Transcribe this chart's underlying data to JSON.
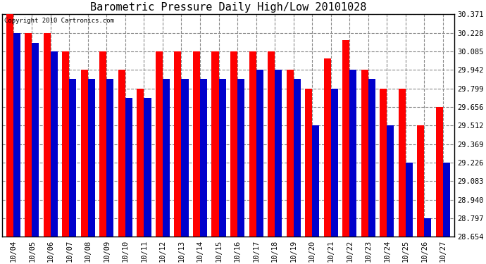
{
  "title": "Barometric Pressure Daily High/Low 20101028",
  "copyright": "Copyright 2010 Cartronics.com",
  "background_color": "#ffffff",
  "plot_bg_color": "#ffffff",
  "bar_width": 0.38,
  "dates": [
    "10/04",
    "10/05",
    "10/06",
    "10/07",
    "10/08",
    "10/09",
    "10/10",
    "10/11",
    "10/12",
    "10/13",
    "10/14",
    "10/15",
    "10/16",
    "10/17",
    "10/18",
    "10/19",
    "10/20",
    "10/21",
    "10/22",
    "10/23",
    "10/24",
    "10/25",
    "10/26",
    "10/27"
  ],
  "highs": [
    30.371,
    30.228,
    30.228,
    30.085,
    29.942,
    30.085,
    29.942,
    29.799,
    30.085,
    30.085,
    30.085,
    30.085,
    30.085,
    30.085,
    30.085,
    29.942,
    29.799,
    30.028,
    30.17,
    29.942,
    29.799,
    29.799,
    29.512,
    29.656
  ],
  "lows": [
    30.228,
    30.15,
    30.085,
    29.87,
    29.87,
    29.87,
    29.727,
    29.727,
    29.87,
    29.87,
    29.87,
    29.87,
    29.87,
    29.942,
    29.942,
    29.87,
    29.512,
    29.799,
    29.942,
    29.87,
    29.512,
    29.226,
    28.797,
    29.226
  ],
  "high_color": "#ff0000",
  "low_color": "#0000cc",
  "ylim_min": 28.654,
  "ylim_max": 30.371,
  "yticks": [
    28.654,
    28.797,
    28.94,
    29.083,
    29.226,
    29.369,
    29.512,
    29.656,
    29.799,
    29.942,
    30.085,
    30.228,
    30.371
  ],
  "grid_color": "#888888",
  "grid_style": "--"
}
